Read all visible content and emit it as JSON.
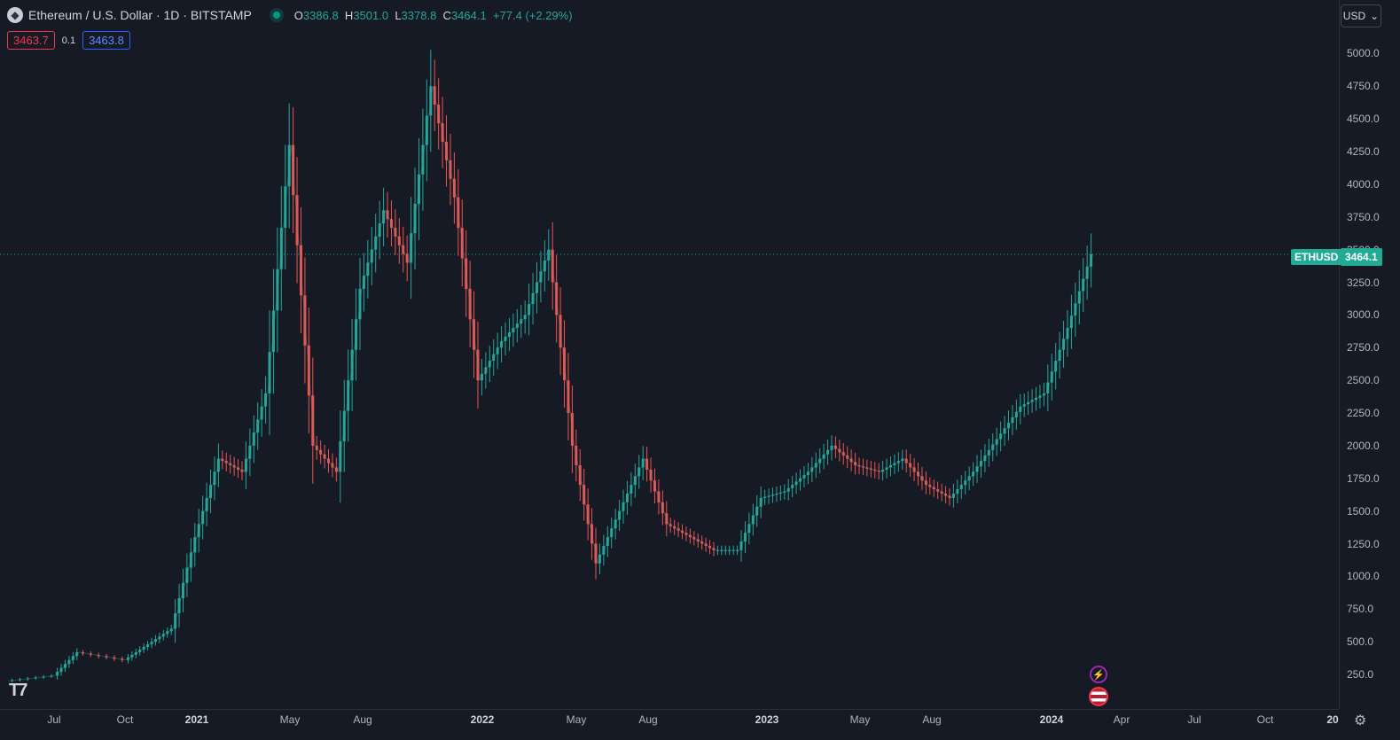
{
  "header": {
    "title": "Ethereum / U.S. Dollar · 1D · BITSTAMP",
    "ohlc": {
      "o_label": "O",
      "o": "3386.8",
      "h_label": "H",
      "h": "3501.0",
      "l_label": "L",
      "l": "3378.8",
      "c_label": "C",
      "c": "3464.1",
      "change": "+77.4 (+2.29%)"
    }
  },
  "quote": {
    "bid": "3463.7",
    "spread": "0.1",
    "ask": "3463.8"
  },
  "currency": "USD",
  "last_price": {
    "symbol": "ETHUSD",
    "value": "3464.1",
    "price": 3464.1
  },
  "price_axis": {
    "ticks": [
      "250.0",
      "500.0",
      "750.0",
      "1000.0",
      "1250.0",
      "1500.0",
      "1750.0",
      "2000.0",
      "2250.0",
      "2500.0",
      "2750.0",
      "3000.0",
      "3250.0",
      "3500.0",
      "3750.0",
      "4000.0",
      "4250.0",
      "4500.0",
      "4750.0",
      "5000.0"
    ]
  },
  "time_axis": {
    "labels": [
      {
        "text": "Jul",
        "bold": false
      },
      {
        "text": "Oct",
        "bold": false
      },
      {
        "text": "2021",
        "bold": true
      },
      {
        "text": "May",
        "bold": false
      },
      {
        "text": "Aug",
        "bold": false
      },
      {
        "text": "2022",
        "bold": true
      },
      {
        "text": "May",
        "bold": false
      },
      {
        "text": "Aug",
        "bold": false
      },
      {
        "text": "2023",
        "bold": true
      },
      {
        "text": "May",
        "bold": false
      },
      {
        "text": "Aug",
        "bold": false
      },
      {
        "text": "2024",
        "bold": true
      },
      {
        "text": "Apr",
        "bold": false
      },
      {
        "text": "Jul",
        "bold": false
      },
      {
        "text": "Oct",
        "bold": false
      },
      {
        "text": "20",
        "bold": true
      }
    ]
  },
  "colors": {
    "up": "#26a69a",
    "down": "#ef5350",
    "accent": "#22ab94",
    "background": "#161a25"
  },
  "chart_data": {
    "type": "line",
    "series": [
      {
        "values": [
          {
            "x": "2020-05",
            "y": 200
          },
          {
            "x": "2020-07",
            "y": 240
          },
          {
            "x": "2020-08",
            "y": 420
          },
          {
            "x": "2020-10",
            "y": 360
          },
          {
            "x": "2020-11",
            "y": 480
          },
          {
            "x": "2020-12",
            "y": 600
          },
          {
            "x": "2021-01",
            "y": 1300
          },
          {
            "x": "2021-02",
            "y": 1900
          },
          {
            "x": "2021-03",
            "y": 1800
          },
          {
            "x": "2021-04",
            "y": 2400
          },
          {
            "x": "2021-05",
            "y": 4300
          },
          {
            "x": "2021-06",
            "y": 2000
          },
          {
            "x": "2021-07",
            "y": 1800
          },
          {
            "x": "2021-08",
            "y": 3200
          },
          {
            "x": "2021-09",
            "y": 3800
          },
          {
            "x": "2021-10",
            "y": 3400
          },
          {
            "x": "2021-11",
            "y": 4750
          },
          {
            "x": "2021-12",
            "y": 3900
          },
          {
            "x": "2022-01",
            "y": 2500
          },
          {
            "x": "2022-02",
            "y": 2800
          },
          {
            "x": "2022-03",
            "y": 3000
          },
          {
            "x": "2022-04",
            "y": 3500
          },
          {
            "x": "2022-05",
            "y": 2000
          },
          {
            "x": "2022-06",
            "y": 1100
          },
          {
            "x": "2022-07",
            "y": 1500
          },
          {
            "x": "2022-08",
            "y": 1900
          },
          {
            "x": "2022-09",
            "y": 1400
          },
          {
            "x": "2022-10",
            "y": 1300
          },
          {
            "x": "2022-11",
            "y": 1200
          },
          {
            "x": "2022-12",
            "y": 1200
          },
          {
            "x": "2023-01",
            "y": 1600
          },
          {
            "x": "2023-02",
            "y": 1650
          },
          {
            "x": "2023-03",
            "y": 1800
          },
          {
            "x": "2023-04",
            "y": 2000
          },
          {
            "x": "2023-05",
            "y": 1850
          },
          {
            "x": "2023-06",
            "y": 1800
          },
          {
            "x": "2023-07",
            "y": 1900
          },
          {
            "x": "2023-08",
            "y": 1700
          },
          {
            "x": "2023-09",
            "y": 1600
          },
          {
            "x": "2023-10",
            "y": 1800
          },
          {
            "x": "2023-11",
            "y": 2050
          },
          {
            "x": "2023-12",
            "y": 2300
          },
          {
            "x": "2024-01",
            "y": 2400
          },
          {
            "x": "2024-02",
            "y": 2900
          },
          {
            "x": "2024-03",
            "y": 3464
          }
        ]
      }
    ],
    "ylim": [
      100,
      5100
    ],
    "xlim": [
      "2020-04",
      "2025-01"
    ]
  }
}
